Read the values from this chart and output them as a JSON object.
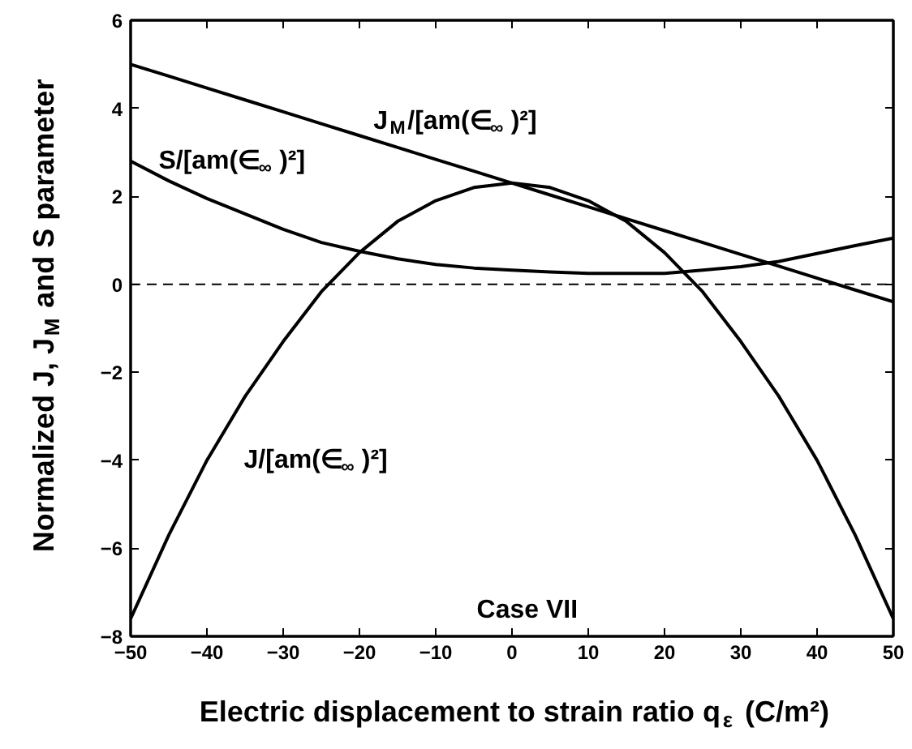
{
  "chart_data": {
    "type": "line",
    "xlabel": "Electric displacement to strain ratio q$_{ε}$ (C/m²)",
    "ylabel": "Normalized J, J$_{M}$ and S parameter",
    "xlim": [
      -50,
      50
    ],
    "ylim": [
      -8,
      6
    ],
    "xticks": [
      -50,
      -40,
      -30,
      -20,
      -10,
      0,
      10,
      20,
      30,
      40,
      50
    ],
    "yticks": [
      -8,
      -6,
      -4,
      -2,
      0,
      2,
      4,
      6
    ],
    "grid": false,
    "line_style": "solid",
    "x": [
      -50,
      -45,
      -40,
      -35,
      -30,
      -25,
      -20,
      -15,
      -10,
      -5,
      0,
      5,
      10,
      15,
      20,
      25,
      30,
      35,
      40,
      45,
      50
    ],
    "series": [
      {
        "color": "#000000",
        "values": [
          -7.6,
          -5.7,
          -4.0,
          -2.55,
          -1.3,
          -0.17,
          0.72,
          1.43,
          1.9,
          2.2,
          2.3,
          2.2,
          1.9,
          1.43,
          0.72,
          -0.17,
          -1.3,
          -2.55,
          -4.0,
          -5.7,
          -7.6
        ]
      },
      {
        "color": "#000000",
        "values": [
          5.0,
          4.73,
          4.46,
          4.19,
          3.92,
          3.65,
          3.38,
          3.11,
          2.84,
          2.57,
          2.3,
          2.03,
          1.76,
          1.49,
          1.22,
          0.95,
          0.68,
          0.41,
          0.14,
          -0.13,
          -0.4
        ]
      },
      {
        "color": "#000000",
        "values": [
          2.8,
          2.35,
          1.95,
          1.6,
          1.25,
          0.95,
          0.75,
          0.58,
          0.45,
          0.37,
          0.32,
          0.28,
          0.25,
          0.25,
          0.25,
          0.32,
          0.4,
          0.52,
          0.7,
          0.88,
          1.05
        ]
      }
    ],
    "ref_lines": [
      {
        "axis": "y",
        "value": 0,
        "color": "#000000",
        "line_style": "dashed"
      }
    ],
    "annotations": [
      "J$_{M}$/[am(∈$_{∞}$)²]",
      "S/[am(∈$_{∞}$)²]",
      "J/[am(∈$_{∞}$)²]",
      "Case VII"
    ]
  }
}
